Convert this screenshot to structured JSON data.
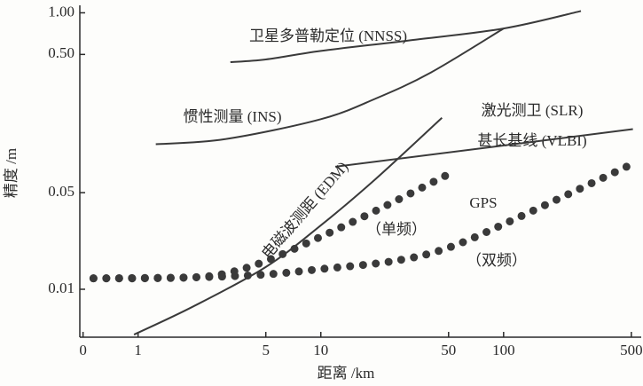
{
  "chart_data": {
    "type": "line",
    "x_label": "距离 /km",
    "y_label": "精度 /m",
    "xscale": "log",
    "yscale": "log",
    "xlim": [
      0.48,
      560
    ],
    "ylim": [
      0.0045,
      1.1
    ],
    "xticks": [
      {
        "value": 0.5,
        "label": "0"
      },
      1,
      5,
      10,
      50,
      100,
      500
    ],
    "yticks": [
      {
        "value": 1,
        "label": "1.00"
      },
      {
        "value": 0.5,
        "label": "0.50"
      },
      0.05,
      0.01
    ],
    "annotations": [
      "甚长基线 (VLBI)",
      "GPS"
    ],
    "series": [
      {
        "name": "卫星多普勒定位 (NNSS)",
        "color": "#3a3a3a",
        "style": "solid",
        "x": [
          3.2,
          5,
          10,
          30,
          100,
          265
        ],
        "values": [
          0.44,
          0.46,
          0.53,
          0.63,
          0.77,
          1.03
        ]
      },
      {
        "name": "惯性测量 (INS)",
        "color": "#3a3a3a",
        "style": "solid",
        "x": [
          1.25,
          3,
          10,
          20,
          40,
          100
        ],
        "values": [
          0.112,
          0.122,
          0.17,
          0.24,
          0.37,
          0.77
        ]
      },
      {
        "name": "激光测卫 (SLR)",
        "color": "#3a3a3a",
        "style": "solid",
        "x": [
          12,
          510
        ],
        "values": [
          0.077,
          0.144
        ]
      },
      {
        "name": "电磁波测距 (EDM)",
        "color": "#3a3a3a",
        "style": "solid",
        "x": [
          0.95,
          2,
          5,
          10,
          20,
          46
        ],
        "values": [
          0.0047,
          0.0075,
          0.0145,
          0.029,
          0.063,
          0.174
        ]
      },
      {
        "name": "（单频）",
        "color": "#3a3a3a",
        "style": "dotted",
        "x": [
          0.57,
          1,
          2,
          3,
          5,
          10,
          20,
          50
        ],
        "values": [
          0.012,
          0.012,
          0.0122,
          0.013,
          0.016,
          0.024,
          0.037,
          0.068
        ]
      },
      {
        "name": "（双频）",
        "color": "#3a3a3a",
        "style": "dotted",
        "x": [
          0.57,
          2,
          5,
          10,
          25,
          50,
          120,
          500
        ],
        "values": [
          0.012,
          0.0122,
          0.0128,
          0.014,
          0.016,
          0.02,
          0.033,
          0.08
        ]
      }
    ]
  }
}
